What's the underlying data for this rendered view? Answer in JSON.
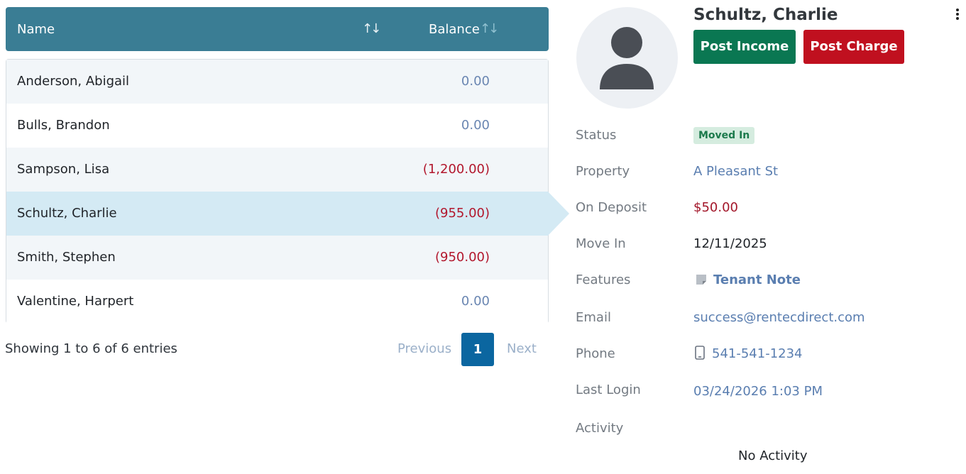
{
  "table": {
    "columns": {
      "name": "Name",
      "balance": "Balance"
    },
    "rows": [
      {
        "name": "Anderson, Abigail",
        "balance": "0.00",
        "negative": false
      },
      {
        "name": "Bulls, Brandon",
        "balance": "0.00",
        "negative": false
      },
      {
        "name": "Sampson, Lisa",
        "balance": "(1,200.00)",
        "negative": true
      },
      {
        "name": "Schultz, Charlie",
        "balance": "(955.00)",
        "negative": true,
        "selected": true
      },
      {
        "name": "Smith, Stephen",
        "balance": "(950.00)",
        "negative": true
      },
      {
        "name": "Valentine, Harpert",
        "balance": "0.00",
        "negative": false
      }
    ],
    "info": "Showing 1 to 6 of 6 entries",
    "pagination": {
      "previous": "Previous",
      "current": "1",
      "next": "Next"
    }
  },
  "tenant": {
    "name": "Schultz, Charlie",
    "actions": {
      "post_income": "Post Income",
      "post_charge": "Post Charge"
    },
    "fields": {
      "status": {
        "label": "Status",
        "value": "Moved In"
      },
      "property": {
        "label": "Property",
        "value": "A Pleasant St"
      },
      "deposit": {
        "label": "On Deposit",
        "value": "$50.00"
      },
      "move_in": {
        "label": "Move In",
        "value": "12/11/2025"
      },
      "features": {
        "label": "Features",
        "value": "Tenant Note"
      },
      "email": {
        "label": "Email",
        "value": "success@rentecdirect.com"
      },
      "phone": {
        "label": "Phone",
        "value": "541-541-1234"
      },
      "last_login": {
        "label": "Last Login",
        "value": "03/24/2026 1:03 PM"
      },
      "activity": {
        "label": "Activity",
        "value": "No Activity"
      }
    }
  },
  "icons": [
    "sort-icon",
    "avatar-icon",
    "note-icon",
    "mobile-phone-icon",
    "more-options-icon"
  ],
  "colors": {
    "header": "#3a7d94",
    "selected_row": "#d4eaf4",
    "income": "#0a7752",
    "charge": "#c0101f",
    "negative": "#b2172d",
    "link": "#5a7eb0"
  }
}
